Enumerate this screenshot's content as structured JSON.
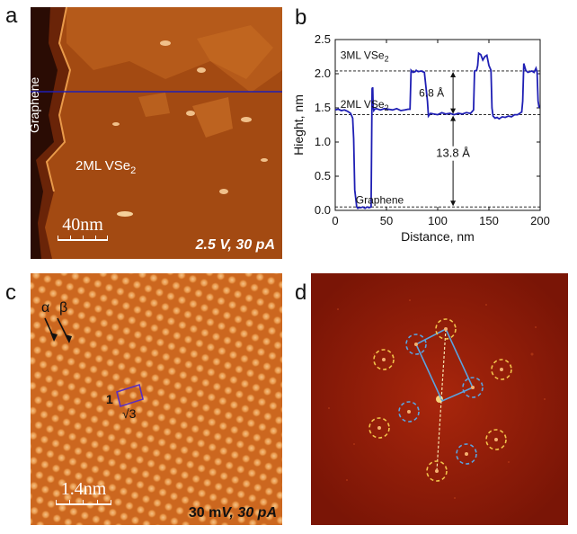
{
  "figure": {
    "panels": [
      {
        "letter": "a"
      },
      {
        "letter": "b"
      },
      {
        "letter": "c"
      },
      {
        "letter": "d"
      }
    ],
    "panel_a": {
      "label_graphene": "Graphene",
      "label_film": "2ML VSe",
      "label_film_sub": "2",
      "scalebar_text": "40nm",
      "bias": "2.5 V, 30 pA"
    },
    "panel_c": {
      "label_alpha": "α",
      "label_beta": "β",
      "label_one": "1",
      "label_sqrt3": "√3",
      "scalebar_text": "1.4nm",
      "bias_value": "30 m",
      "bias_unit": "V, 30 pA"
    },
    "colors": {
      "stm_bg": "#a8460e",
      "stm_bright": "#f6b56a",
      "profile_line": "#1f1fb4",
      "fft_bg": "#8c1a08",
      "yellow_ring": "#f2c24a",
      "blue_ring": "#5aa3e0"
    }
  },
  "chart_data": {
    "type": "line",
    "xlabel": "Distance, nm",
    "ylabel": "Hieght, nm",
    "xlim": [
      0,
      200
    ],
    "ylim": [
      0,
      2.5
    ],
    "xticks": [
      0,
      50,
      100,
      150,
      200
    ],
    "yticks": [
      0.0,
      0.5,
      1.0,
      1.5,
      2.0,
      2.5
    ],
    "xtick_labels": [
      "0",
      "50",
      "100",
      "150",
      "200"
    ],
    "ytick_labels": [
      "0.0",
      "0.5",
      "1.0",
      "1.5",
      "2.0",
      "2.5"
    ],
    "reference_lines": [
      2.04,
      1.4,
      0.05
    ],
    "annotations": {
      "l3": "3ML VSe",
      "l2": "2ML VSe",
      "sub": "2",
      "graphene": "Graphene",
      "step1": "6.8 Å",
      "step2": "13.8 Å"
    },
    "series": [
      {
        "x": [
          0,
          3,
          6,
          9,
          12,
          15,
          17,
          18,
          19,
          21,
          22,
          23,
          25,
          27,
          29,
          31,
          33,
          35,
          36,
          36.6,
          37,
          37.6,
          38.5,
          40,
          44,
          48,
          52,
          56,
          60,
          64,
          68,
          71,
          73,
          74,
          76,
          78,
          79,
          81,
          84,
          87,
          90,
          91,
          93,
          96,
          100,
          104,
          108,
          112,
          116,
          120,
          124,
          128,
          132,
          135,
          136,
          138,
          139,
          140,
          142,
          144,
          146,
          148,
          150,
          152,
          153,
          154,
          156,
          158,
          160,
          163,
          166,
          169,
          172,
          175,
          178,
          180,
          182,
          183,
          184,
          186,
          188,
          190,
          192,
          194,
          196,
          197,
          198,
          199
        ],
        "values": [
          1.47,
          1.48,
          1.46,
          1.47,
          1.45,
          1.42,
          1.35,
          1.05,
          0.3,
          0.05,
          0.03,
          0.04,
          0.04,
          0.05,
          0.03,
          0.05,
          0.04,
          0.05,
          1.78,
          1.8,
          1.52,
          1.46,
          1.48,
          1.49,
          1.47,
          1.49,
          1.48,
          1.47,
          1.49,
          1.46,
          1.47,
          1.48,
          1.48,
          2.05,
          2.02,
          2.03,
          2.05,
          2.03,
          2.04,
          2.02,
          1.6,
          1.38,
          1.42,
          1.41,
          1.4,
          1.43,
          1.41,
          1.42,
          1.4,
          1.42,
          1.41,
          1.43,
          1.42,
          1.47,
          2.04,
          2.05,
          2.12,
          2.3,
          2.28,
          2.2,
          2.25,
          2.27,
          2.12,
          2.05,
          1.5,
          1.38,
          1.35,
          1.36,
          1.34,
          1.37,
          1.36,
          1.38,
          1.37,
          1.4,
          1.4,
          1.42,
          1.44,
          1.6,
          2.15,
          2.05,
          2.02,
          2.03,
          2.04,
          2.02,
          2.08,
          2.02,
          1.6,
          1.5
        ]
      }
    ]
  }
}
